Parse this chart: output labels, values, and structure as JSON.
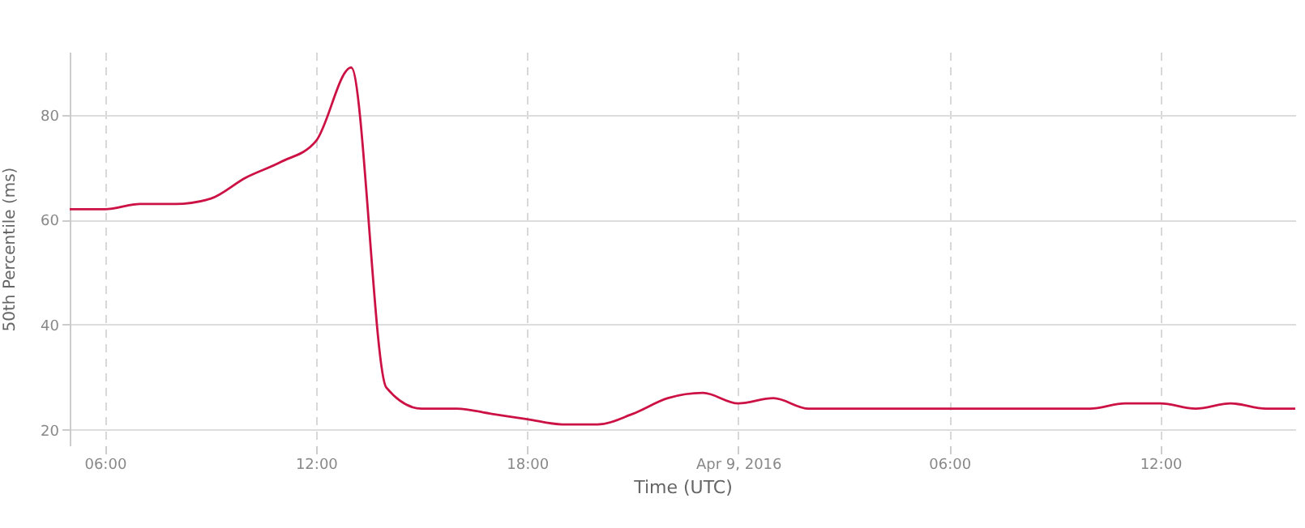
{
  "chart_data": {
    "type": "line",
    "xlabel": "Time (UTC)",
    "ylabel": "50th Percentile (ms)",
    "x": [
      "2016-04-08T05:00",
      "2016-04-08T06:00",
      "2016-04-08T07:00",
      "2016-04-08T08:00",
      "2016-04-08T09:00",
      "2016-04-08T10:00",
      "2016-04-08T11:00",
      "2016-04-08T12:00",
      "2016-04-08T13:00",
      "2016-04-08T14:00",
      "2016-04-08T15:00",
      "2016-04-08T16:00",
      "2016-04-08T17:00",
      "2016-04-08T18:00",
      "2016-04-08T19:00",
      "2016-04-08T20:00",
      "2016-04-08T21:00",
      "2016-04-08T22:00",
      "2016-04-08T23:00",
      "2016-04-09T00:00",
      "2016-04-09T01:00",
      "2016-04-09T02:00",
      "2016-04-09T03:00",
      "2016-04-09T04:00",
      "2016-04-09T05:00",
      "2016-04-09T06:00",
      "2016-04-09T07:00",
      "2016-04-09T08:00",
      "2016-04-09T09:00",
      "2016-04-09T10:00",
      "2016-04-09T11:00",
      "2016-04-09T12:00",
      "2016-04-09T13:00",
      "2016-04-09T14:00",
      "2016-04-09T15:00",
      "2016-04-09T15:50"
    ],
    "series": [
      {
        "color": "#cc1144",
        "values": [
          62,
          62,
          63,
          63,
          64,
          68,
          71,
          75,
          89,
          28,
          24,
          24,
          23,
          22,
          21,
          21,
          23,
          26,
          27,
          25,
          26,
          24,
          24,
          24,
          24,
          24,
          24,
          24,
          24,
          24,
          25,
          25,
          24,
          25,
          24,
          24
        ]
      }
    ],
    "xlim": [
      "2016-04-08T05:00",
      "2016-04-09T15:50"
    ],
    "xticks": [
      {
        "value": "2016-04-08T06:00",
        "label": "06:00"
      },
      {
        "value": "2016-04-08T12:00",
        "label": "12:00"
      },
      {
        "value": "2016-04-08T18:00",
        "label": "18:00"
      },
      {
        "value": "2016-04-09T00:00",
        "label": "Apr 9, 2016"
      },
      {
        "value": "2016-04-09T06:00",
        "label": "06:00"
      },
      {
        "value": "2016-04-09T12:00",
        "label": "12:00"
      }
    ],
    "ylim": [
      17,
      92
    ],
    "yticks": [
      20,
      40,
      60,
      80
    ],
    "grid": true,
    "marker": "none",
    "line_style": "solid"
  }
}
